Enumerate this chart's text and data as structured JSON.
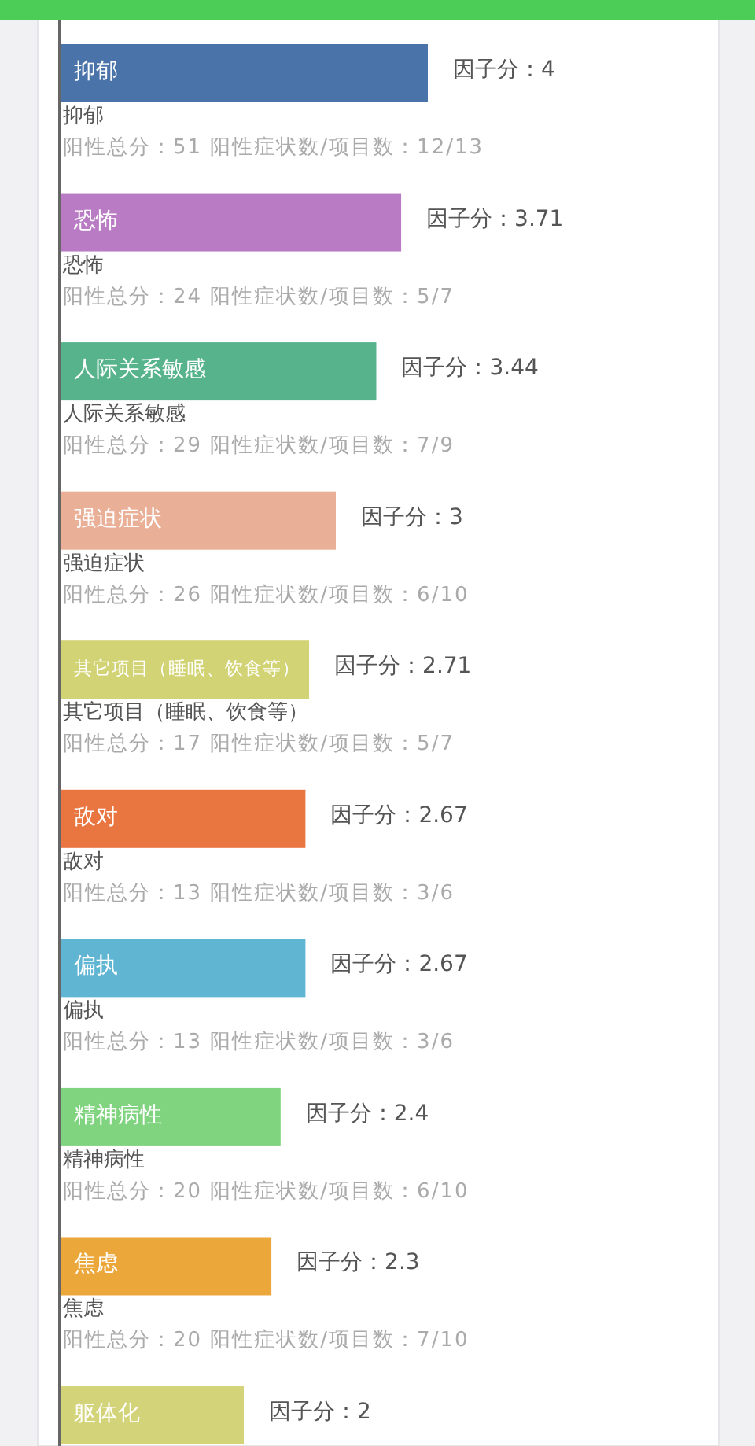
{
  "chart_data": {
    "type": "bar",
    "orientation": "horizontal",
    "categories": [
      "抑郁",
      "恐怖",
      "人际关系敏感",
      "强迫症状",
      "其它项目（睡眠、饮食等）",
      "敌对",
      "偏执",
      "精神病性",
      "焦虑",
      "躯体化"
    ],
    "values": [
      4,
      3.71,
      3.44,
      3,
      2.71,
      2.67,
      2.67,
      2.4,
      2.3,
      2
    ],
    "colors": [
      "#4a73a9",
      "#b87bc4",
      "#56b38b",
      "#eaaf97",
      "#d2d374",
      "#e97540",
      "#60b5d3",
      "#80d47f",
      "#eba73a",
      "#d3d47a"
    ],
    "value_labels": [
      "因子分：4",
      "因子分：3.71",
      "因子分：3.44",
      "因子分：3",
      "因子分：2.71",
      "因子分：2.67",
      "因子分：2.67",
      "因子分：2.4",
      "因子分：2.3",
      "因子分：2"
    ],
    "annotations": [
      "阳性总分：51  阳性症状数/项目数：12/13",
      "阳性总分：24  阳性症状数/项目数：5/7",
      "阳性总分：29  阳性症状数/项目数：7/9",
      "阳性总分：26  阳性症状数/项目数：6/10",
      "阳性总分：17  阳性症状数/项目数：5/7",
      "阳性总分：13  阳性症状数/项目数：3/6",
      "阳性总分：13  阳性症状数/项目数：3/6",
      "阳性总分：20  阳性症状数/项目数：6/10",
      "阳性总分：20  阳性症状数/项目数：7/10"
    ],
    "tick_labels": "y"
  }
}
